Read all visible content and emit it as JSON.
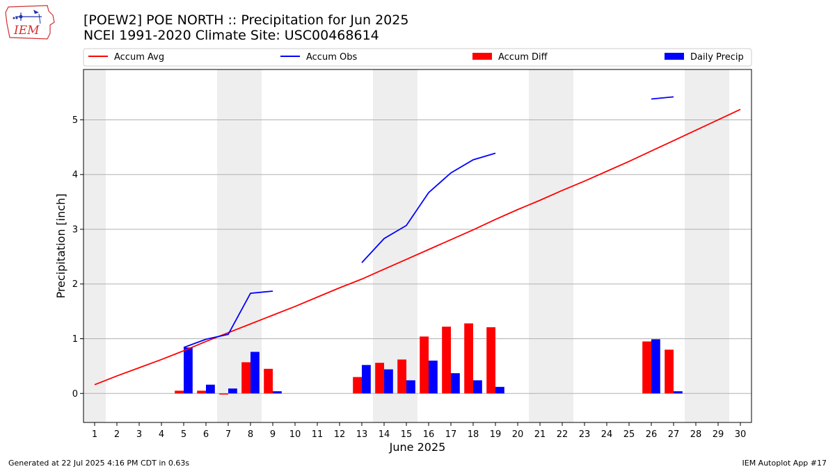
{
  "header": {
    "title_line1": "[POEW2] POE NORTH :: Precipitation for Jun 2025",
    "title_line2": "NCEI 1991-2020 Climate Site: USC00468614",
    "logo_text": "IEM"
  },
  "footer": {
    "generated": "Generated at 22 Jul 2025 4:16 PM CDT in 0.63s",
    "app": "IEM Autoplot App #17"
  },
  "colors": {
    "avg": "#ff0000",
    "obs": "#0000ff",
    "diff": "#ff0000",
    "daily": "#0000ff",
    "weekend_band": "#eeeeee",
    "grid": "#b0b0b0"
  },
  "chart_data": {
    "type": "bar",
    "title": "[POEW2] POE NORTH :: Precipitation for Jun 2025",
    "xlabel": "June 2025",
    "ylabel": "Precipitation [inch]",
    "xlim": [
      0.5,
      30.5
    ],
    "ylim": [
      -0.53,
      5.92
    ],
    "x_ticks": [
      1,
      2,
      3,
      4,
      5,
      6,
      7,
      8,
      9,
      10,
      11,
      12,
      13,
      14,
      15,
      16,
      17,
      18,
      19,
      20,
      21,
      22,
      23,
      24,
      25,
      26,
      27,
      28,
      29,
      30
    ],
    "y_ticks": [
      0,
      1,
      2,
      3,
      4,
      5
    ],
    "grid": "horizontal",
    "legend_position": "top",
    "legend": [
      "Accum Avg",
      "Accum Obs",
      "Accum Diff",
      "Daily Precip"
    ],
    "weekend_bands": [
      [
        0.5,
        1.5
      ],
      [
        6.5,
        8.5
      ],
      [
        13.5,
        15.5
      ],
      [
        20.5,
        22.5
      ],
      [
        27.5,
        29.5
      ]
    ],
    "days": [
      1,
      2,
      3,
      4,
      5,
      6,
      7,
      8,
      9,
      10,
      11,
      12,
      13,
      14,
      15,
      16,
      17,
      18,
      19,
      20,
      21,
      22,
      23,
      24,
      25,
      26,
      27,
      28,
      29,
      30
    ],
    "series": [
      {
        "name": "Accum Avg",
        "kind": "line",
        "values": [
          0.16,
          0.32,
          0.47,
          0.62,
          0.78,
          0.95,
          1.11,
          1.27,
          1.43,
          1.59,
          1.76,
          1.93,
          2.09,
          2.27,
          2.45,
          2.63,
          2.81,
          2.99,
          3.18,
          3.36,
          3.53,
          3.71,
          3.88,
          4.06,
          4.24,
          4.43,
          4.62,
          4.81,
          5.0,
          5.19
        ]
      },
      {
        "name": "Accum Obs",
        "kind": "line",
        "values": [
          null,
          null,
          null,
          null,
          0.84,
          0.99,
          1.08,
          1.83,
          1.87,
          null,
          null,
          null,
          2.39,
          2.83,
          3.07,
          3.67,
          4.03,
          4.27,
          4.39,
          null,
          null,
          null,
          null,
          null,
          null,
          5.38,
          5.42,
          null,
          null,
          null
        ]
      },
      {
        "name": "Accum Diff",
        "kind": "bar",
        "values": [
          null,
          null,
          null,
          null,
          0.05,
          0.05,
          -0.02,
          0.57,
          0.45,
          null,
          null,
          null,
          0.3,
          0.56,
          0.62,
          1.04,
          1.22,
          1.28,
          1.21,
          null,
          null,
          null,
          null,
          null,
          null,
          0.95,
          0.8,
          null,
          null,
          null
        ]
      },
      {
        "name": "Daily Precip",
        "kind": "bar",
        "values": [
          null,
          null,
          null,
          null,
          0.84,
          0.16,
          0.09,
          0.76,
          0.04,
          null,
          null,
          null,
          0.52,
          0.44,
          0.24,
          0.6,
          0.37,
          0.24,
          0.12,
          null,
          null,
          null,
          null,
          null,
          null,
          0.99,
          0.04,
          null,
          null,
          null
        ]
      }
    ]
  }
}
